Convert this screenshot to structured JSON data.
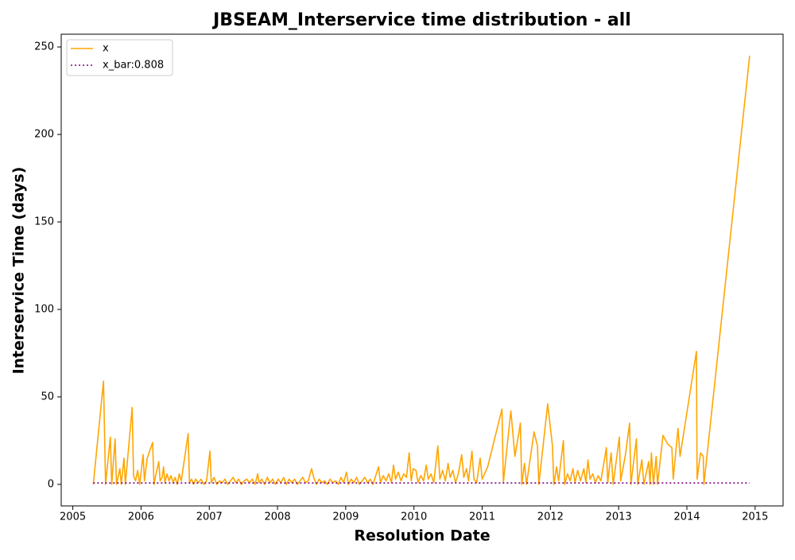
{
  "chart_data": {
    "type": "line",
    "title": "JBSEAM_Interservice time distribution - all",
    "x_label": "Resolution Date",
    "y_label": "Interservice Time (days)",
    "xlim": [
      2004.83,
      2015.41
    ],
    "xticks": [
      2005,
      2006,
      2007,
      2008,
      2009,
      2010,
      2011,
      2012,
      2013,
      2014,
      2015
    ],
    "ylim": [
      -12.3,
      257.3
    ],
    "yticks": [
      0,
      50,
      100,
      150,
      200,
      250
    ],
    "grid": false,
    "legend": "upper left",
    "series": [
      {
        "name": "x",
        "color": "#ffa500",
        "linestyle": "solid",
        "x": [
          2005.3,
          2005.45,
          2005.48,
          2005.55,
          2005.57,
          2005.62,
          2005.64,
          2005.69,
          2005.71,
          2005.75,
          2005.77,
          2005.87,
          2005.89,
          2005.92,
          2005.95,
          2005.98,
          2006.03,
          2006.05,
          2006.09,
          2006.17,
          2006.19,
          2006.22,
          2006.26,
          2006.28,
          2006.31,
          2006.33,
          2006.35,
          2006.38,
          2006.41,
          2006.44,
          2006.47,
          2006.5,
          2006.53,
          2006.56,
          2006.59,
          2006.69,
          2006.71,
          2006.74,
          2006.77,
          2006.8,
          2006.84,
          2006.88,
          2006.92,
          2006.96,
          2007.01,
          2007.03,
          2007.07,
          2007.11,
          2007.15,
          2007.19,
          2007.23,
          2007.27,
          2007.31,
          2007.35,
          2007.39,
          2007.43,
          2007.47,
          2007.51,
          2007.55,
          2007.59,
          2007.63,
          2007.67,
          2007.71,
          2007.73,
          2007.77,
          2007.81,
          2007.85,
          2007.89,
          2007.93,
          2007.97,
          2008.01,
          2008.05,
          2008.09,
          2008.13,
          2008.17,
          2008.21,
          2008.25,
          2008.29,
          2008.33,
          2008.37,
          2008.41,
          2008.45,
          2008.5,
          2008.53,
          2008.57,
          2008.61,
          2008.65,
          2008.69,
          2008.73,
          2008.77,
          2008.81,
          2008.85,
          2008.89,
          2008.93,
          2008.97,
          2009.01,
          2009.04,
          2009.08,
          2009.12,
          2009.16,
          2009.2,
          2009.24,
          2009.28,
          2009.32,
          2009.36,
          2009.4,
          2009.44,
          2009.48,
          2009.51,
          2009.55,
          2009.59,
          2009.63,
          2009.67,
          2009.7,
          2009.73,
          2009.77,
          2009.81,
          2009.85,
          2009.89,
          2009.93,
          2009.96,
          2009.99,
          2010.03,
          2010.06,
          2010.1,
          2010.14,
          2010.18,
          2010.21,
          2010.25,
          2010.29,
          2010.35,
          2010.38,
          2010.42,
          2010.46,
          2010.5,
          2010.53,
          2010.57,
          2010.61,
          2010.65,
          2010.7,
          2010.73,
          2010.77,
          2010.8,
          2010.85,
          2010.88,
          2010.92,
          2010.97,
          2011.0,
          2011.08,
          2011.29,
          2011.31,
          2011.42,
          2011.48,
          2011.56,
          2011.58,
          2011.62,
          2011.65,
          2011.76,
          2011.81,
          2011.83,
          2011.96,
          2012.03,
          2012.05,
          2012.09,
          2012.12,
          2012.19,
          2012.21,
          2012.25,
          2012.29,
          2012.33,
          2012.36,
          2012.4,
          2012.44,
          2012.49,
          2012.52,
          2012.55,
          2012.58,
          2012.62,
          2012.66,
          2012.7,
          2012.74,
          2012.82,
          2012.84,
          2012.89,
          2012.92,
          2013.01,
          2013.03,
          2013.1,
          2013.16,
          2013.18,
          2013.26,
          2013.28,
          2013.34,
          2013.37,
          2013.44,
          2013.46,
          2013.48,
          2013.51,
          2013.55,
          2013.57,
          2013.65,
          2013.72,
          2013.78,
          2013.8,
          2013.87,
          2013.9,
          2014.14,
          2014.15,
          2014.2,
          2014.24,
          2014.25,
          2014.92
        ],
        "values": [
          0,
          59,
          0,
          27,
          0,
          26,
          0,
          9,
          0,
          15,
          0,
          44,
          5,
          2,
          8,
          0,
          17,
          2,
          15,
          24,
          0,
          6,
          13,
          2,
          4,
          10,
          1,
          6,
          2,
          5,
          1,
          4,
          0,
          6,
          2,
          29,
          1,
          3,
          0,
          3,
          1,
          3,
          0,
          2,
          19,
          1,
          4,
          0,
          2,
          1,
          3,
          0,
          2,
          4,
          1,
          3,
          0,
          2,
          3,
          1,
          3,
          0,
          6,
          1,
          3,
          0,
          4,
          1,
          3,
          0,
          3,
          1,
          4,
          0,
          3,
          1,
          3,
          0,
          2,
          4,
          1,
          2,
          9,
          4,
          0,
          3,
          1,
          2,
          0,
          3,
          1,
          2,
          0,
          4,
          1,
          7,
          0,
          3,
          1,
          4,
          0,
          2,
          4,
          1,
          3,
          0,
          5,
          10,
          1,
          5,
          2,
          6,
          1,
          11,
          3,
          7,
          2,
          6,
          4,
          18,
          2,
          9,
          8,
          1,
          5,
          2,
          11,
          3,
          6,
          1,
          22,
          3,
          8,
          2,
          12,
          4,
          8,
          1,
          6,
          17,
          4,
          9,
          2,
          19,
          3,
          1,
          15,
          3,
          10,
          43,
          1,
          42,
          16,
          35,
          0,
          12,
          0,
          30,
          22,
          0,
          46,
          22,
          0,
          10,
          2,
          25,
          0,
          6,
          2,
          9,
          1,
          8,
          2,
          9,
          1,
          14,
          3,
          6,
          1,
          5,
          2,
          21,
          1,
          18,
          0,
          27,
          2,
          17,
          35,
          0,
          26,
          0,
          14,
          0,
          13,
          0,
          18,
          0,
          16,
          0,
          28,
          23,
          21,
          3,
          32,
          16,
          76,
          3,
          18,
          16,
          0,
          245
        ]
      },
      {
        "name": "x_bar:0.808",
        "color": "#800080",
        "linestyle": "dotted",
        "x": [
          2005.3,
          2014.92
        ],
        "values": [
          0.808,
          0.808
        ]
      }
    ]
  }
}
